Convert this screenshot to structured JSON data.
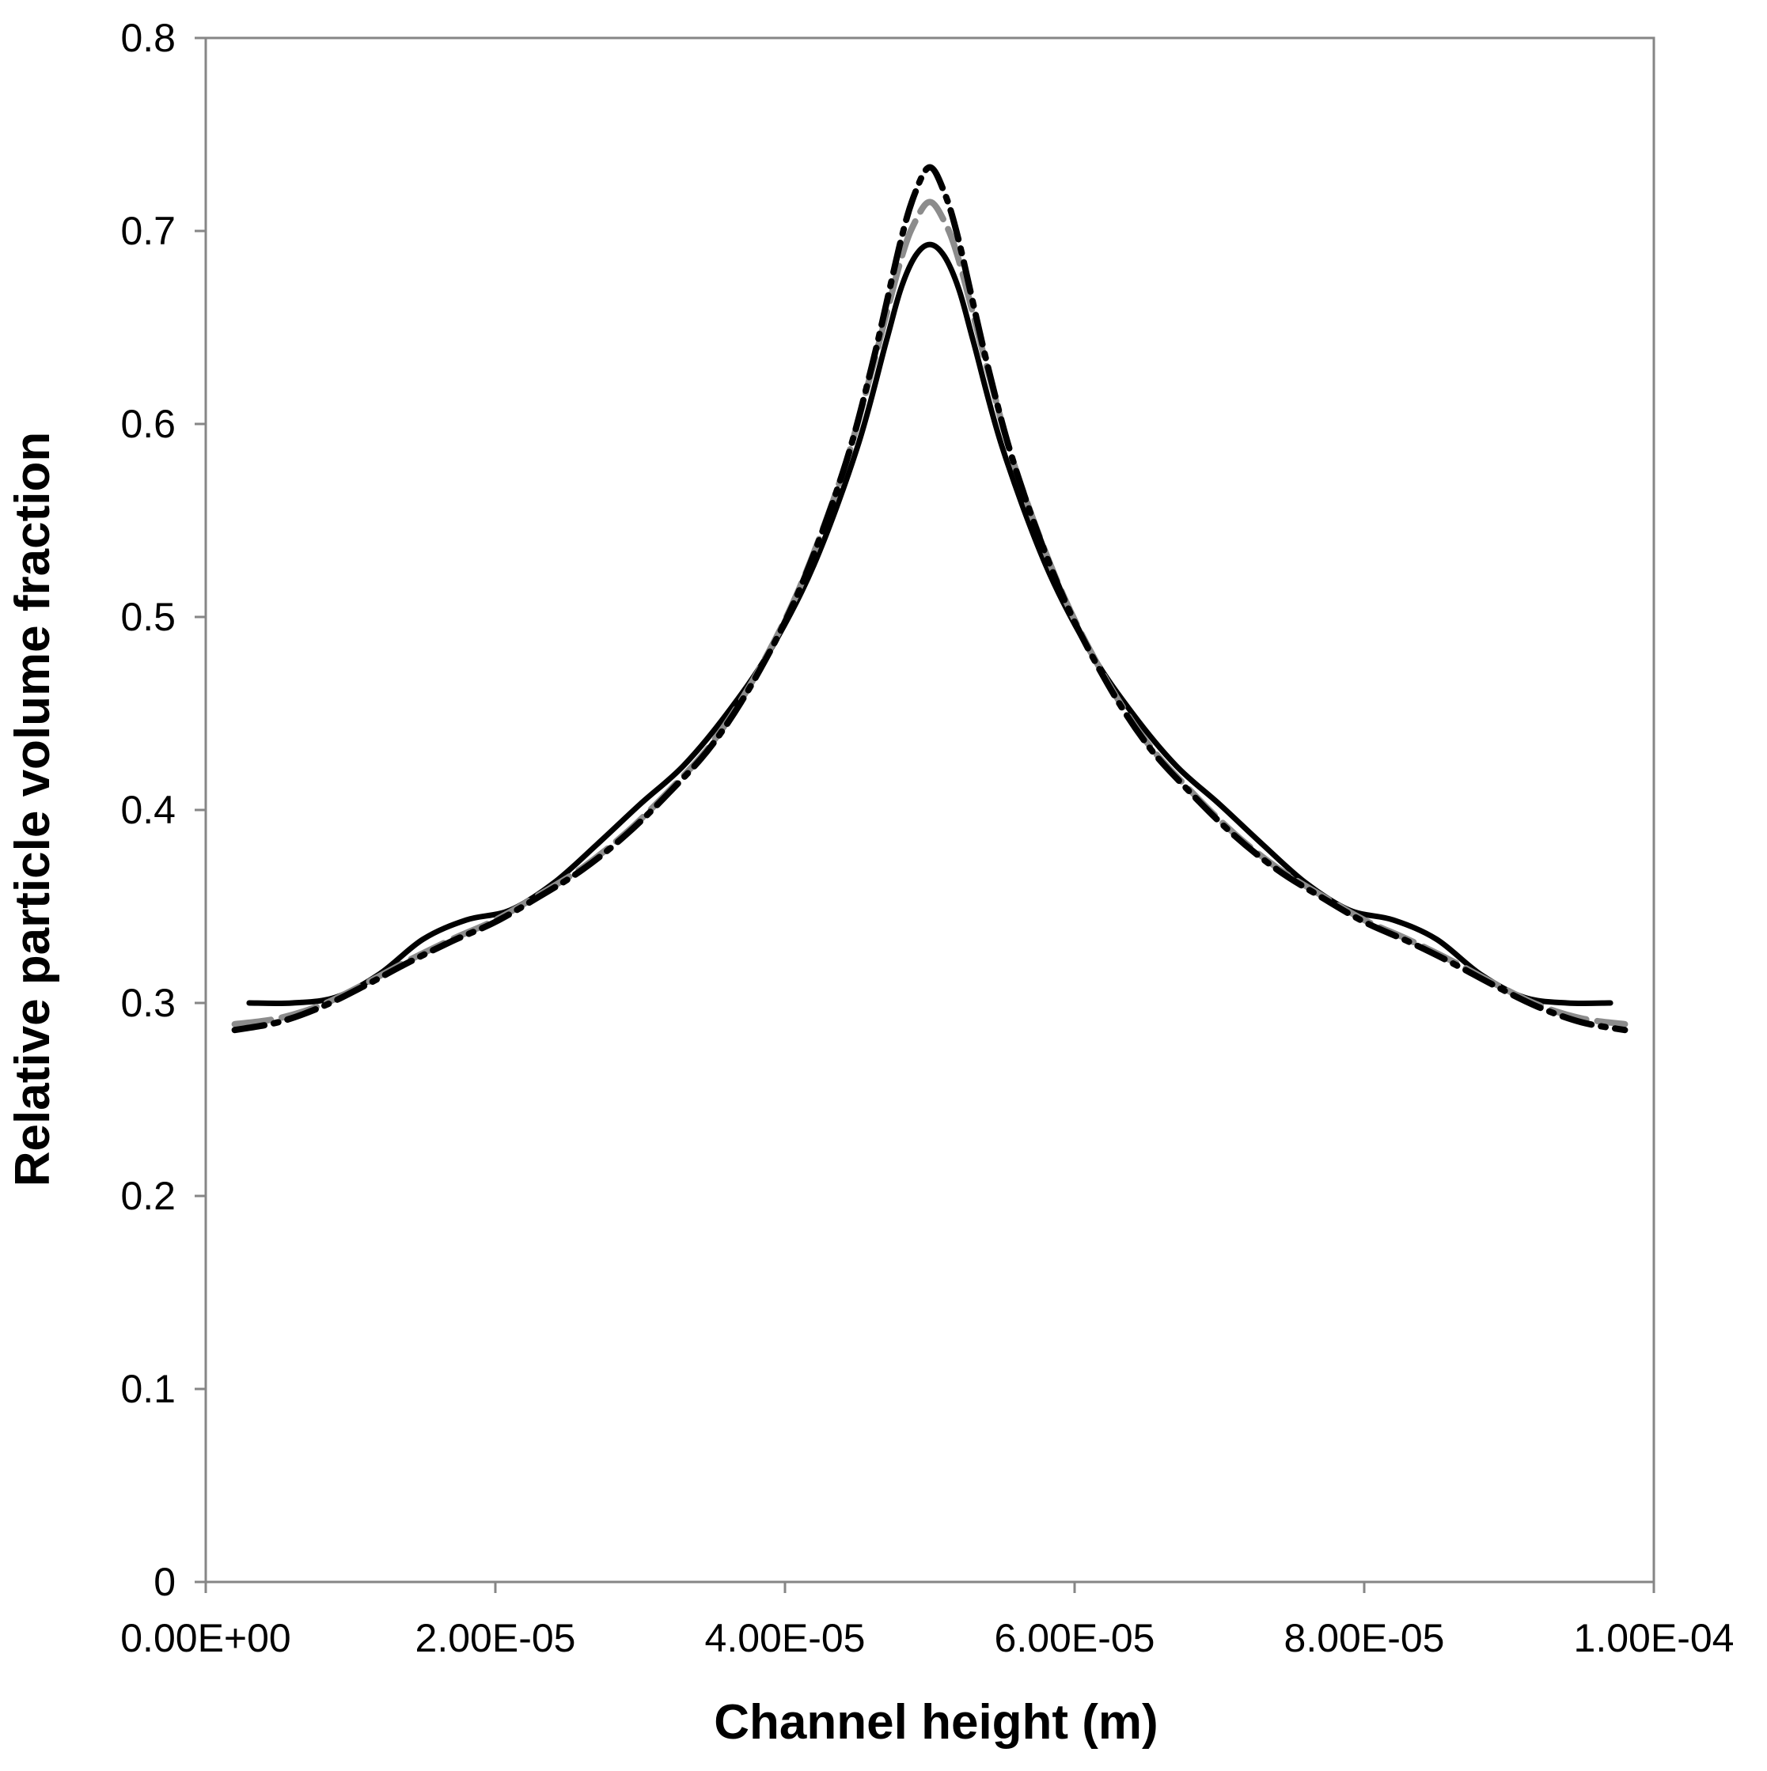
{
  "chart_data": {
    "type": "line",
    "title": "",
    "xlabel": "Channel height (m)",
    "ylabel": "Relative particle volume fraction",
    "xlim": [
      0,
      0.0001
    ],
    "ylim": [
      0,
      0.8
    ],
    "grid": false,
    "legend": "none",
    "x_tick_labels": [
      "0.00E+00",
      "2.00E-05",
      "4.00E-05",
      "6.00E-05",
      "8.00E-05",
      "1.00E-04"
    ],
    "x_tick_values": [
      0,
      2e-05,
      4e-05,
      6e-05,
      8e-05,
      0.0001
    ],
    "y_tick_labels": [
      "0",
      "0.1",
      "0.2",
      "0.3",
      "0.4",
      "0.5",
      "0.6",
      "0.7",
      "0.8"
    ],
    "y_tick_values": [
      0,
      0.1,
      0.2,
      0.3,
      0.4,
      0.5,
      0.6,
      0.7,
      0.8
    ],
    "series": [
      {
        "name": "solid-black",
        "color": "#000000",
        "dash": "solid",
        "x": [
          3e-06,
          6e-06,
          9e-06,
          1.2e-05,
          1.5e-05,
          1.8e-05,
          2.1e-05,
          2.4e-05,
          2.7e-05,
          3e-05,
          3.3e-05,
          3.6e-05,
          3.9e-05,
          4.2e-05,
          4.5e-05,
          4.7e-05,
          4.8e-05,
          4.9e-05,
          5e-05,
          5.1e-05,
          5.2e-05,
          5.3e-05,
          5.5e-05,
          5.8e-05,
          6.1e-05,
          6.4e-05,
          6.7e-05,
          7e-05,
          7.3e-05,
          7.6e-05,
          7.9e-05,
          8.2e-05,
          8.5e-05,
          8.8e-05,
          9.1e-05,
          9.4e-05,
          9.7e-05
        ],
        "y": [
          0.3,
          0.3,
          0.303,
          0.315,
          0.333,
          0.343,
          0.348,
          0.362,
          0.382,
          0.403,
          0.423,
          0.45,
          0.483,
          0.527,
          0.588,
          0.643,
          0.67,
          0.687,
          0.693,
          0.687,
          0.67,
          0.643,
          0.588,
          0.527,
          0.483,
          0.45,
          0.423,
          0.403,
          0.382,
          0.362,
          0.348,
          0.343,
          0.333,
          0.315,
          0.303,
          0.3,
          0.3
        ]
      },
      {
        "name": "gray-dashed",
        "color": "#8c8c8c",
        "dash": "long-dash",
        "x": [
          2e-06,
          5e-06,
          8e-06,
          1.1e-05,
          1.4e-05,
          1.7e-05,
          2e-05,
          2.3e-05,
          2.6e-05,
          2.9e-05,
          3.2e-05,
          3.5e-05,
          3.8e-05,
          4.1e-05,
          4.4e-05,
          4.6e-05,
          4.8e-05,
          4.9e-05,
          5e-05,
          5.1e-05,
          5.2e-05,
          5.4e-05,
          5.6e-05,
          5.9e-05,
          6.2e-05,
          6.5e-05,
          6.8e-05,
          7.1e-05,
          7.4e-05,
          7.7e-05,
          8e-05,
          8.3e-05,
          8.6e-05,
          8.9e-05,
          9.2e-05,
          9.5e-05,
          9.8e-05
        ],
        "y": [
          0.289,
          0.292,
          0.299,
          0.31,
          0.322,
          0.333,
          0.343,
          0.356,
          0.37,
          0.388,
          0.41,
          0.435,
          0.47,
          0.515,
          0.575,
          0.628,
          0.685,
          0.705,
          0.715,
          0.705,
          0.685,
          0.628,
          0.575,
          0.515,
          0.47,
          0.435,
          0.41,
          0.388,
          0.37,
          0.356,
          0.343,
          0.333,
          0.322,
          0.31,
          0.299,
          0.292,
          0.289
        ]
      },
      {
        "name": "black-dash-dot",
        "color": "#000000",
        "dash": "dash-dot",
        "x": [
          2e-06,
          5e-06,
          8e-06,
          1.1e-05,
          1.4e-05,
          1.7e-05,
          2e-05,
          2.3e-05,
          2.6e-05,
          2.9e-05,
          3.2e-05,
          3.5e-05,
          3.8e-05,
          4.1e-05,
          4.4e-05,
          4.6e-05,
          4.8e-05,
          4.9e-05,
          5e-05,
          5.1e-05,
          5.2e-05,
          5.4e-05,
          5.6e-05,
          5.9e-05,
          6.2e-05,
          6.5e-05,
          6.8e-05,
          7.1e-05,
          7.4e-05,
          7.7e-05,
          8e-05,
          8.3e-05,
          8.6e-05,
          8.9e-05,
          9.2e-05,
          9.5e-05,
          9.8e-05
        ],
        "y": [
          0.286,
          0.29,
          0.298,
          0.309,
          0.321,
          0.332,
          0.342,
          0.355,
          0.369,
          0.387,
          0.409,
          0.434,
          0.469,
          0.514,
          0.575,
          0.63,
          0.695,
          0.72,
          0.733,
          0.72,
          0.695,
          0.63,
          0.575,
          0.514,
          0.469,
          0.434,
          0.409,
          0.387,
          0.369,
          0.355,
          0.342,
          0.332,
          0.321,
          0.309,
          0.298,
          0.29,
          0.286
        ]
      }
    ]
  }
}
